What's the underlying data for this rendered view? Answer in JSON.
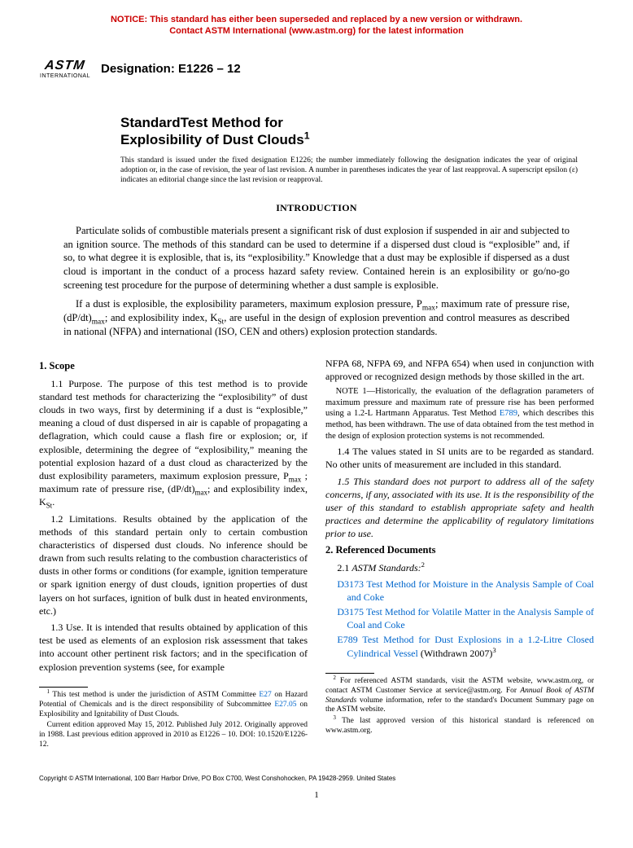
{
  "notice": {
    "line1": "NOTICE: This standard has either been superseded and replaced by a new version or withdrawn.",
    "line2": "Contact ASTM International (www.astm.org) for the latest information",
    "color": "#cc0000"
  },
  "logo": {
    "top": "ASTM",
    "bottom": "INTERNATIONAL"
  },
  "designation": {
    "label": "Designation: E1226 – 12"
  },
  "title": {
    "line1": "StandardTest Method for",
    "line2": "Explosibility of Dust Clouds",
    "sup": "1"
  },
  "issuance": "This standard is issued under the fixed designation E1226; the number immediately following the designation indicates the year of original adoption or, in the case of revision, the year of last revision. A number in parentheses indicates the year of last reapproval. A superscript epsilon (ε) indicates an editorial change since the last revision or reapproval.",
  "intro": {
    "heading": "INTRODUCTION",
    "p1": "Particulate solids of combustible materials present a significant risk of dust explosion if suspended in air and subjected to an ignition source. The methods of this standard can be used to determine if a dispersed dust cloud is “explosible” and, if so, to what degree it is explosible, that is, its “explosibility.” Knowledge that a dust may be explosible if dispersed as a dust cloud is important in the conduct of a process hazard safety review. Contained herein is an explosibility or go/no-go screening test procedure for the purpose of determining whether a dust sample is explosible.",
    "p2_a": "If a dust is explosible, the explosibility parameters, maximum explosion pressure, P",
    "p2_b": "; maximum rate of pressure rise, (dP/dt)",
    "p2_c": "; and explosibility index, K",
    "p2_d": ", are useful in the design of explosion prevention and control measures as described in national (NFPA) and international (ISO, CEN and others) explosion protection standards."
  },
  "scope": {
    "head": "1. Scope",
    "p11_a": "1.1 Purpose. The purpose of this test method is to provide standard test methods for characterizing the “explosibility” of dust clouds in two ways, first by determining if a dust is “explosible,” meaning a cloud of dust dispersed in air is capable of propagating a deflagration, which could cause a flash fire or explosion; or, if explosible, determining the degree of “explosibility,” meaning the potential explosion hazard of a dust cloud as characterized by the dust explosibility parameters, maximum explosion pressure, P",
    "p11_b": " ; maximum rate of pressure rise, (dP/dt)",
    "p11_c": "; and explosibility index, K",
    "p12": "1.2 Limitations. Results obtained by the application of the methods of this standard pertain only to certain combustion characteristics of dispersed dust clouds. No inference should be drawn from such results relating to the combustion characteristics of dusts in other forms or conditions (for example, ignition temperature or spark ignition energy of dust clouds, ignition properties of dust layers on hot surfaces, ignition of bulk dust in heated environments, etc.)",
    "p13": "1.3 Use. It is intended that results obtained by application of this test be used as elements of an explosion risk assessment that takes into account other pertinent risk factors; and in the specification of explosion prevention systems (see, for example",
    "p13b": "NFPA 68, NFPA 69, and NFPA 654) when used in conjunction with approved or recognized design methods by those skilled in the art.",
    "note1_a": " 1—Historically, the evaluation of the deflagration parameters of maximum pressure and maximum rate of pressure rise has been performed using a 1.2-L Hartmann Apparatus. Test Method ",
    "note1_b": ", which describes this method, has been withdrawn. The use of data obtained from the test method in the design of explosion protection systems is not recommended.",
    "p14": "1.4 The values stated in SI units are to be regarded as standard. No other units of measurement are included in this standard.",
    "p15": "1.5 This standard does not purport to address all of the safety concerns, if any, associated with its use. It is the responsibility of the user of this standard to establish appropriate safety and health practices and determine the applicability of regulatory limitations prior to use."
  },
  "refs": {
    "head": "2. Referenced Documents",
    "astm_label": "ASTM Standards:",
    "items": [
      {
        "code": "D3173",
        "text": "Test Method for Moisture in the Analysis Sample of Coal and Coke"
      },
      {
        "code": "D3175",
        "text": "Test Method for Volatile Matter in the Analysis Sample of Coal and Coke"
      },
      {
        "code": "E789",
        "text": "Test Method for Dust Explosions in a 1.2-Litre Closed Cylindrical Vessel",
        "trail": " (Withdrawn 2007)",
        "sup": "3"
      }
    ]
  },
  "footnotes": {
    "left1_a": " This test method is under the jurisdiction of ASTM Committee ",
    "left1_b": " on Hazard Potential of Chemicals and is the direct responsibility of Subcommittee ",
    "left1_c": " on Explosibility and Ignitability of Dust Clouds.",
    "left2": "Current edition approved May 15, 2012. Published July 2012. Originally approved in 1988. Last previous edition approved in 2010 as E1226 – 10. DOI: 10.1520/E1226-12.",
    "right1_a": " For referenced ASTM standards, visit the ASTM website, www.astm.org, or contact ASTM Customer Service at service@astm.org. For ",
    "right1_b": " volume information, refer to the standard's Document Summary page on the ASTM website.",
    "right2": " The last approved version of this historical standard is referenced on www.astm.org.",
    "link_e27": "E27",
    "link_e2705": "E27.05",
    "abos": "Annual Book of ASTM Standards"
  },
  "subs": {
    "max": "max",
    "St": "St"
  },
  "note_label": "NOTE",
  "e789": "E789",
  "copyright": "Copyright © ASTM International, 100 Barr Harbor Drive, PO Box C700, West Conshohocken, PA 19428-2959. United States",
  "page_number": "1"
}
